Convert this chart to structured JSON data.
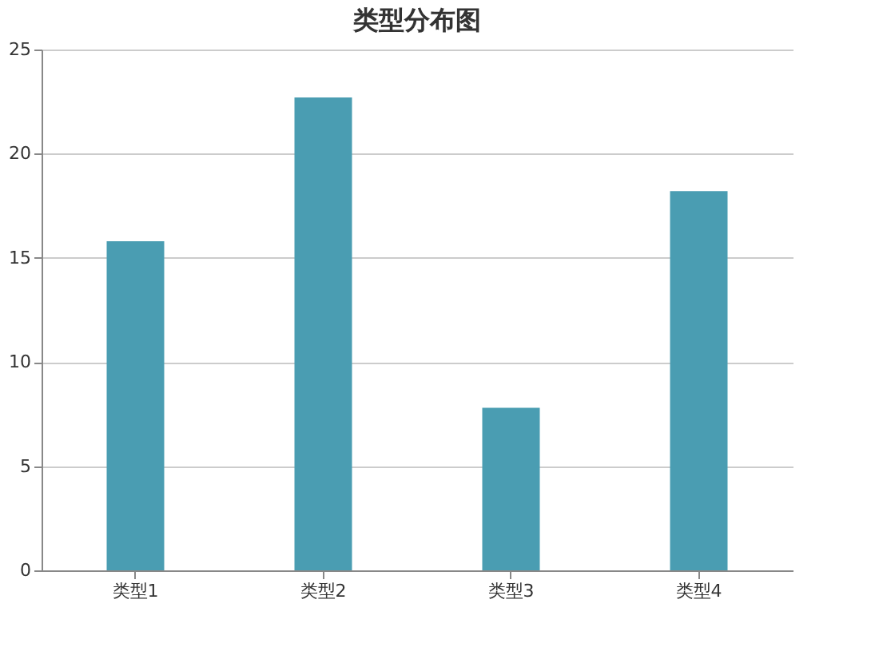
{
  "chart_data": {
    "type": "bar",
    "title": "类型分布图",
    "categories": [
      "类型1",
      "类型2",
      "类型3",
      "类型4"
    ],
    "series": [
      {
        "color": "#4a9db2",
        "values": [
          15.8,
          22.7,
          7.8,
          18.2
        ]
      }
    ],
    "ylim": [
      0,
      25
    ],
    "yticks": [
      0,
      5,
      10,
      15,
      20,
      25
    ],
    "grid": "y"
  }
}
